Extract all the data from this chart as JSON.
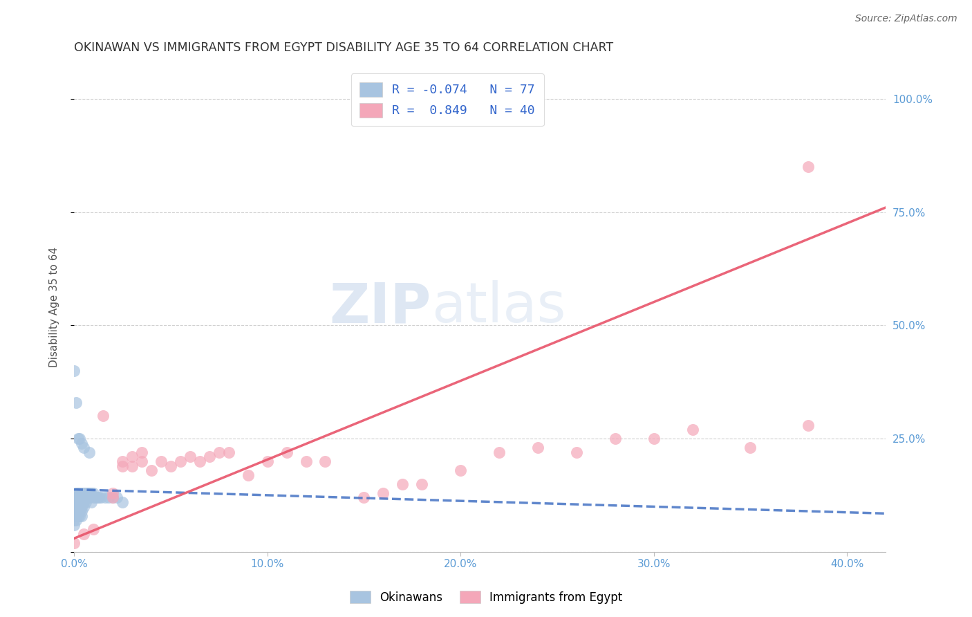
{
  "title": "OKINAWAN VS IMMIGRANTS FROM EGYPT DISABILITY AGE 35 TO 64 CORRELATION CHART",
  "source": "Source: ZipAtlas.com",
  "ylabel": "Disability Age 35 to 64",
  "xlim": [
    0.0,
    0.42
  ],
  "ylim": [
    0.0,
    1.08
  ],
  "xticks": [
    0.0,
    0.1,
    0.2,
    0.3,
    0.4
  ],
  "xtick_labels": [
    "0.0%",
    "10.0%",
    "20.0%",
    "30.0%",
    "40.0%"
  ],
  "ytick_positions": [
    0.0,
    0.25,
    0.5,
    0.75,
    1.0
  ],
  "ytick_labels": [
    "",
    "25.0%",
    "50.0%",
    "75.0%",
    "100.0%"
  ],
  "legend_R_okinawan": "-0.074",
  "legend_N_okinawan": "77",
  "legend_R_egypt": "0.849",
  "legend_N_egypt": "40",
  "okinawan_color": "#a8c4e0",
  "egypt_color": "#f4a7b9",
  "okinawan_line_color": "#4472c4",
  "egypt_line_color": "#e8546a",
  "watermark_zip": "ZIP",
  "watermark_atlas": "atlas",
  "background_color": "#ffffff",
  "grid_color": "#d0d0d0",
  "title_color": "#333333",
  "axis_label_color": "#555555",
  "tick_color": "#5b9bd5",
  "okinawan_x": [
    0.0,
    0.0,
    0.0,
    0.0,
    0.0,
    0.0,
    0.0,
    0.0,
    0.0,
    0.0,
    0.001,
    0.001,
    0.001,
    0.001,
    0.001,
    0.001,
    0.001,
    0.001,
    0.001,
    0.001,
    0.002,
    0.002,
    0.002,
    0.002,
    0.002,
    0.002,
    0.002,
    0.002,
    0.002,
    0.002,
    0.003,
    0.003,
    0.003,
    0.003,
    0.003,
    0.003,
    0.003,
    0.003,
    0.003,
    0.003,
    0.004,
    0.004,
    0.004,
    0.004,
    0.004,
    0.004,
    0.005,
    0.005,
    0.005,
    0.005,
    0.006,
    0.006,
    0.006,
    0.007,
    0.007,
    0.008,
    0.008,
    0.009,
    0.009,
    0.01,
    0.01,
    0.011,
    0.012,
    0.013,
    0.014,
    0.016,
    0.018,
    0.02,
    0.022,
    0.025,
    0.0,
    0.001,
    0.002,
    0.003,
    0.004,
    0.005,
    0.008
  ],
  "okinawan_y": [
    0.12,
    0.1,
    0.09,
    0.08,
    0.07,
    0.11,
    0.1,
    0.09,
    0.08,
    0.06,
    0.13,
    0.11,
    0.1,
    0.09,
    0.08,
    0.12,
    0.11,
    0.1,
    0.09,
    0.07,
    0.13,
    0.12,
    0.11,
    0.1,
    0.09,
    0.08,
    0.12,
    0.11,
    0.1,
    0.09,
    0.13,
    0.12,
    0.11,
    0.1,
    0.09,
    0.08,
    0.12,
    0.11,
    0.1,
    0.09,
    0.13,
    0.12,
    0.11,
    0.1,
    0.09,
    0.08,
    0.13,
    0.12,
    0.11,
    0.1,
    0.13,
    0.12,
    0.11,
    0.13,
    0.12,
    0.13,
    0.12,
    0.13,
    0.11,
    0.13,
    0.12,
    0.12,
    0.12,
    0.12,
    0.12,
    0.12,
    0.12,
    0.12,
    0.12,
    0.11,
    0.4,
    0.33,
    0.25,
    0.25,
    0.24,
    0.23,
    0.22
  ],
  "egypt_x": [
    0.0,
    0.005,
    0.01,
    0.015,
    0.02,
    0.02,
    0.025,
    0.025,
    0.03,
    0.03,
    0.035,
    0.035,
    0.04,
    0.045,
    0.05,
    0.055,
    0.06,
    0.065,
    0.07,
    0.075,
    0.08,
    0.09,
    0.1,
    0.11,
    0.12,
    0.13,
    0.15,
    0.16,
    0.17,
    0.18,
    0.2,
    0.22,
    0.24,
    0.26,
    0.28,
    0.3,
    0.32,
    0.35,
    0.38,
    0.38
  ],
  "egypt_y": [
    0.02,
    0.04,
    0.05,
    0.3,
    0.13,
    0.12,
    0.2,
    0.19,
    0.21,
    0.19,
    0.22,
    0.2,
    0.18,
    0.2,
    0.19,
    0.2,
    0.21,
    0.2,
    0.21,
    0.22,
    0.22,
    0.17,
    0.2,
    0.22,
    0.2,
    0.2,
    0.12,
    0.13,
    0.15,
    0.15,
    0.18,
    0.22,
    0.23,
    0.22,
    0.25,
    0.25,
    0.27,
    0.23,
    0.28,
    0.85
  ],
  "ok_line_x": [
    0.0,
    0.42
  ],
  "ok_line_y": [
    0.138,
    0.085
  ],
  "eg_line_x": [
    0.0,
    0.42
  ],
  "eg_line_y": [
    0.03,
    0.76
  ]
}
